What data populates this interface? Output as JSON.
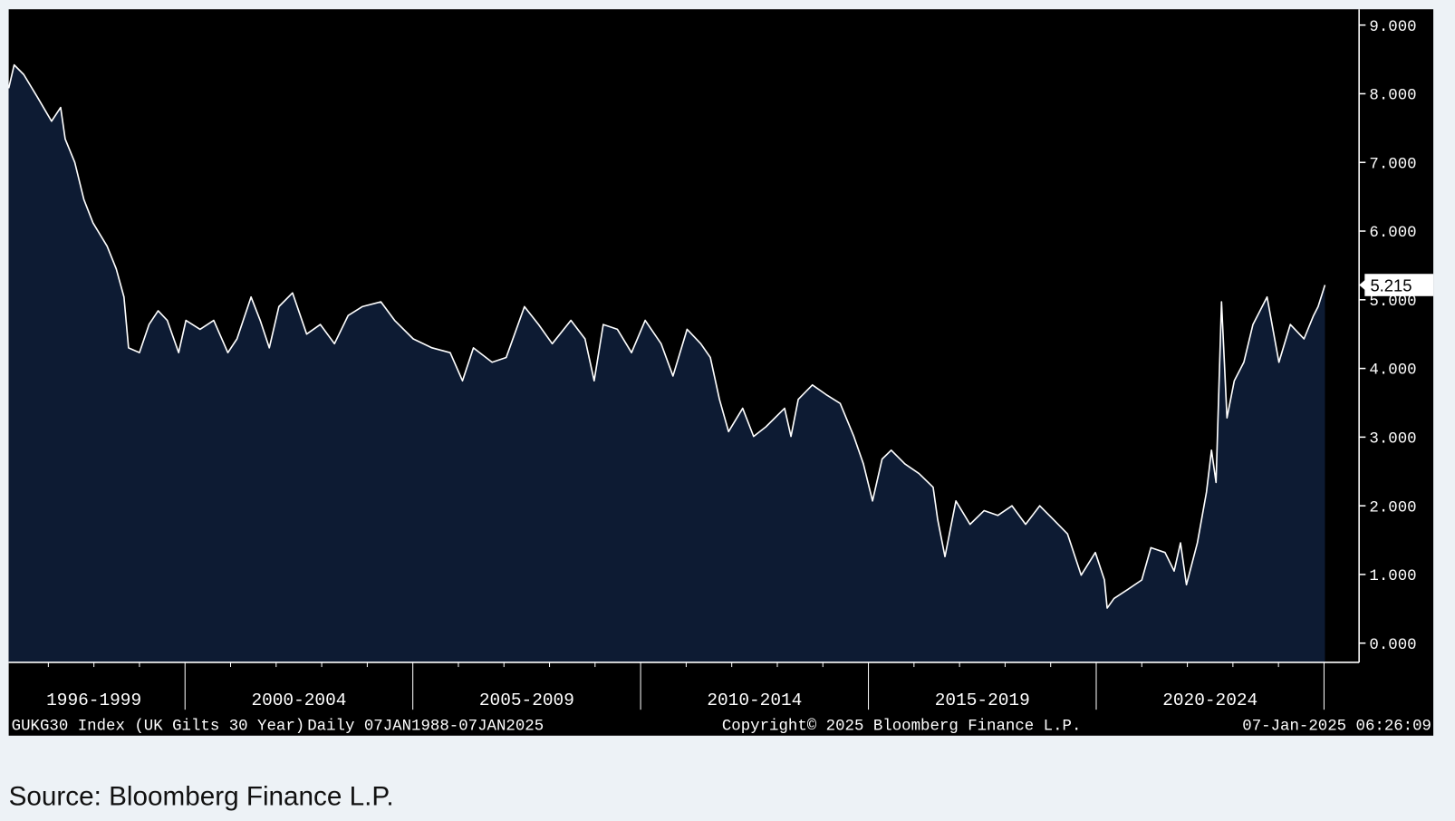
{
  "chart_data": {
    "type": "area",
    "title": "GUKG30 Index (UK Gilts 30 Year)",
    "subtitle": "Daily 07JAN1988-07JAN2025",
    "copyright": "Copyright© 2025 Bloomberg Finance L.P.",
    "timestamp": "07-Jan-2025 06:26:09",
    "source": "Source: Bloomberg Finance L.P.",
    "last_value_label": "5.215",
    "line_color": "#ffffff",
    "fill_color": "#0d1b33",
    "background": "#000000",
    "x": [
      1996.13,
      1996.25,
      1996.46,
      1996.76,
      1997.07,
      1997.27,
      1997.37,
      1997.58,
      1997.78,
      1997.98,
      1998.29,
      1998.49,
      1998.66,
      1998.76,
      1999.0,
      1999.21,
      1999.41,
      1999.61,
      1999.86,
      2000.02,
      2000.33,
      2000.63,
      2000.94,
      2001.14,
      2001.45,
      2001.65,
      2001.85,
      2002.06,
      2002.36,
      2002.67,
      2002.97,
      2003.28,
      2003.58,
      2003.89,
      2004.3,
      2004.6,
      2005.01,
      2005.42,
      2005.82,
      2006.09,
      2006.33,
      2006.74,
      2007.05,
      2007.45,
      2007.76,
      2008.06,
      2008.47,
      2008.78,
      2008.98,
      2009.18,
      2009.49,
      2009.8,
      2010.1,
      2010.45,
      2010.71,
      2011.02,
      2011.32,
      2011.53,
      2011.73,
      2011.93,
      2012.24,
      2012.48,
      2012.75,
      2013.16,
      2013.3,
      2013.46,
      2013.77,
      2014.07,
      2014.38,
      2014.68,
      2014.89,
      2015.09,
      2015.3,
      2015.5,
      2015.8,
      2016.11,
      2016.42,
      2016.52,
      2016.68,
      2016.92,
      2017.23,
      2017.54,
      2017.84,
      2018.15,
      2018.45,
      2018.76,
      2019.06,
      2019.37,
      2019.67,
      2019.98,
      2020.18,
      2020.24,
      2020.39,
      2020.69,
      2021.0,
      2021.2,
      2021.51,
      2021.71,
      2021.85,
      2021.98,
      2022.22,
      2022.42,
      2022.53,
      2022.63,
      2022.75,
      2022.87,
      2023.03,
      2023.24,
      2023.44,
      2023.75,
      2024.01,
      2024.26,
      2024.56,
      2024.77,
      2024.87,
      2025.02
    ],
    "values": [
      8.08,
      8.42,
      8.28,
      7.95,
      7.6,
      7.8,
      7.34,
      7.0,
      6.46,
      6.12,
      5.78,
      5.45,
      5.04,
      4.3,
      4.23,
      4.64,
      4.84,
      4.7,
      4.23,
      4.7,
      4.57,
      4.7,
      4.23,
      4.43,
      5.04,
      4.7,
      4.3,
      4.9,
      5.1,
      4.5,
      4.64,
      4.36,
      4.77,
      4.9,
      4.97,
      4.7,
      4.43,
      4.3,
      4.23,
      3.82,
      4.3,
      4.09,
      4.16,
      4.9,
      4.64,
      4.36,
      4.7,
      4.43,
      3.82,
      4.64,
      4.57,
      4.23,
      4.7,
      4.36,
      3.89,
      4.57,
      4.36,
      4.16,
      3.55,
      3.08,
      3.42,
      3.01,
      3.15,
      3.42,
      3.01,
      3.55,
      3.76,
      3.62,
      3.49,
      3.01,
      2.61,
      2.07,
      2.68,
      2.81,
      2.61,
      2.47,
      2.27,
      1.8,
      1.26,
      2.07,
      1.73,
      1.93,
      1.86,
      2.0,
      1.73,
      2.0,
      1.8,
      1.59,
      0.99,
      1.32,
      0.92,
      0.51,
      0.65,
      0.78,
      0.92,
      1.39,
      1.32,
      1.05,
      1.46,
      0.85,
      1.46,
      2.2,
      2.81,
      2.34,
      4.97,
      3.28,
      3.82,
      4.09,
      4.64,
      5.04,
      4.09,
      4.64,
      4.43,
      4.77,
      4.9,
      5.215
    ],
    "xlim": [
      1996.13,
      2025.77
    ],
    "x_major_ticks": [
      2000,
      2005,
      2010,
      2015,
      2020,
      2025
    ],
    "x_minor_ticks": [
      1997,
      1998,
      1999,
      2001,
      2002,
      2003,
      2004,
      2006,
      2007,
      2008,
      2009,
      2011,
      2012,
      2013,
      2014,
      2016,
      2017,
      2018,
      2019,
      2021,
      2022,
      2023,
      2024
    ],
    "x_period_labels": [
      {
        "value": 1998,
        "label": "1996-1999"
      },
      {
        "value": 2002.5,
        "label": "2000-2004"
      },
      {
        "value": 2007.5,
        "label": "2005-2009"
      },
      {
        "value": 2012.5,
        "label": "2010-2014"
      },
      {
        "value": 2017.5,
        "label": "2015-2019"
      },
      {
        "value": 2022.5,
        "label": "2020-2024"
      }
    ],
    "ylim": [
      -0.28,
      9.23
    ],
    "yticks": [
      {
        "value": 0,
        "label": "0.000"
      },
      {
        "value": 1,
        "label": "1.000"
      },
      {
        "value": 2,
        "label": "2.000"
      },
      {
        "value": 3,
        "label": "3.000"
      },
      {
        "value": 4,
        "label": "4.000"
      },
      {
        "value": 5,
        "label": "5.000"
      },
      {
        "value": 6,
        "label": "6.000"
      },
      {
        "value": 7,
        "label": "7.000"
      },
      {
        "value": 8,
        "label": "8.000"
      },
      {
        "value": 9,
        "label": "9.000"
      }
    ],
    "y_axis_side": "right"
  }
}
